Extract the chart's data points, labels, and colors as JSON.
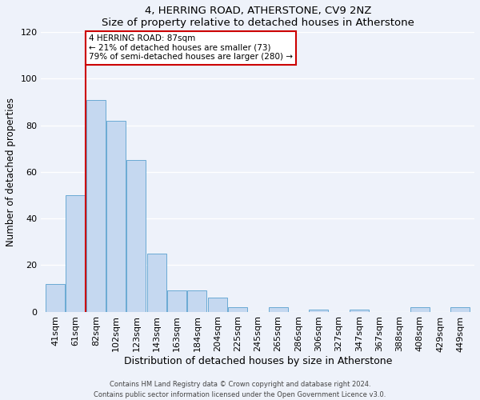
{
  "title": "4, HERRING ROAD, ATHERSTONE, CV9 2NZ",
  "subtitle": "Size of property relative to detached houses in Atherstone",
  "xlabel": "Distribution of detached houses by size in Atherstone",
  "ylabel": "Number of detached properties",
  "bar_color": "#c5d8f0",
  "bar_edge_color": "#6aaad4",
  "bin_labels": [
    "41sqm",
    "61sqm",
    "82sqm",
    "102sqm",
    "123sqm",
    "143sqm",
    "163sqm",
    "184sqm",
    "204sqm",
    "225sqm",
    "245sqm",
    "265sqm",
    "286sqm",
    "306sqm",
    "327sqm",
    "347sqm",
    "367sqm",
    "388sqm",
    "408sqm",
    "429sqm",
    "449sqm"
  ],
  "bar_heights": [
    12,
    50,
    91,
    82,
    65,
    25,
    9,
    9,
    6,
    2,
    0,
    2,
    0,
    1,
    0,
    1,
    0,
    0,
    2,
    0,
    2
  ],
  "ylim": [
    0,
    120
  ],
  "yticks": [
    0,
    20,
    40,
    60,
    80,
    100,
    120
  ],
  "vline_bar_index": 2,
  "vline_color": "#cc0000",
  "annotation_title": "4 HERRING ROAD: 87sqm",
  "annotation_line1": "← 21% of detached houses are smaller (73)",
  "annotation_line2": "79% of semi-detached houses are larger (280) →",
  "annotation_box_color": "#ffffff",
  "annotation_box_edge": "#cc0000",
  "footer1": "Contains HM Land Registry data © Crown copyright and database right 2024.",
  "footer2": "Contains public sector information licensed under the Open Government Licence v3.0.",
  "background_color": "#eef2fa",
  "grid_color": "#ffffff"
}
